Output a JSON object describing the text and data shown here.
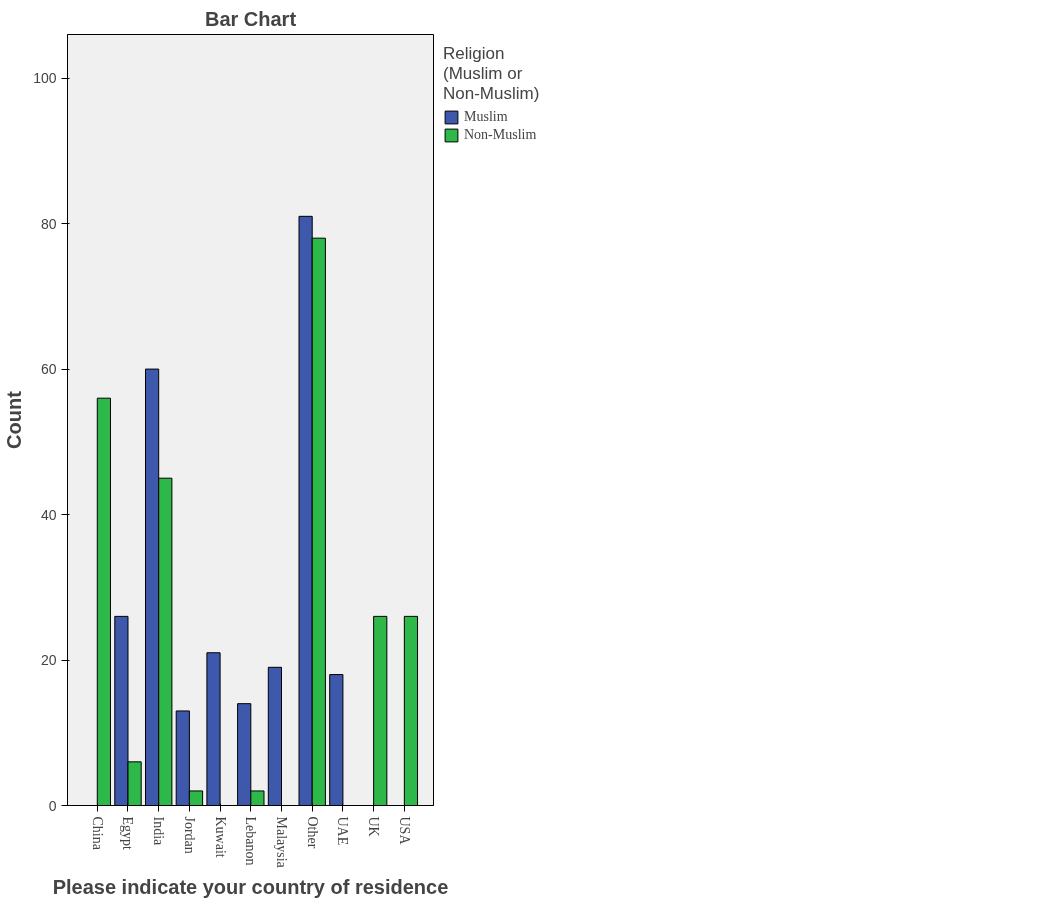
{
  "chart_data": {
    "type": "bar",
    "title": "Bar Chart",
    "xlabel": "Please indicate your country of residence",
    "ylabel": "Count",
    "legend_title": "Religion (Muslim or Non-Muslim)",
    "categories": [
      "China",
      "Egypt",
      "India",
      "Jordan",
      "Kuwait",
      "Lebanon",
      "Malaysia",
      "Other",
      "UAE",
      "UK",
      "USA"
    ],
    "series": [
      {
        "name": "Muslim",
        "color": "#3e58ac",
        "values": [
          null,
          26,
          60,
          13,
          21,
          14,
          19,
          81,
          18,
          null,
          null
        ]
      },
      {
        "name": "Non-Muslim",
        "color": "#2eb84a",
        "values": [
          56,
          6,
          45,
          2,
          null,
          2,
          null,
          78,
          null,
          26,
          26
        ]
      }
    ],
    "ylim": [
      0,
      106
    ],
    "yticks": [
      0,
      20,
      40,
      60,
      80,
      100
    ],
    "grid": false,
    "legend": "right"
  }
}
